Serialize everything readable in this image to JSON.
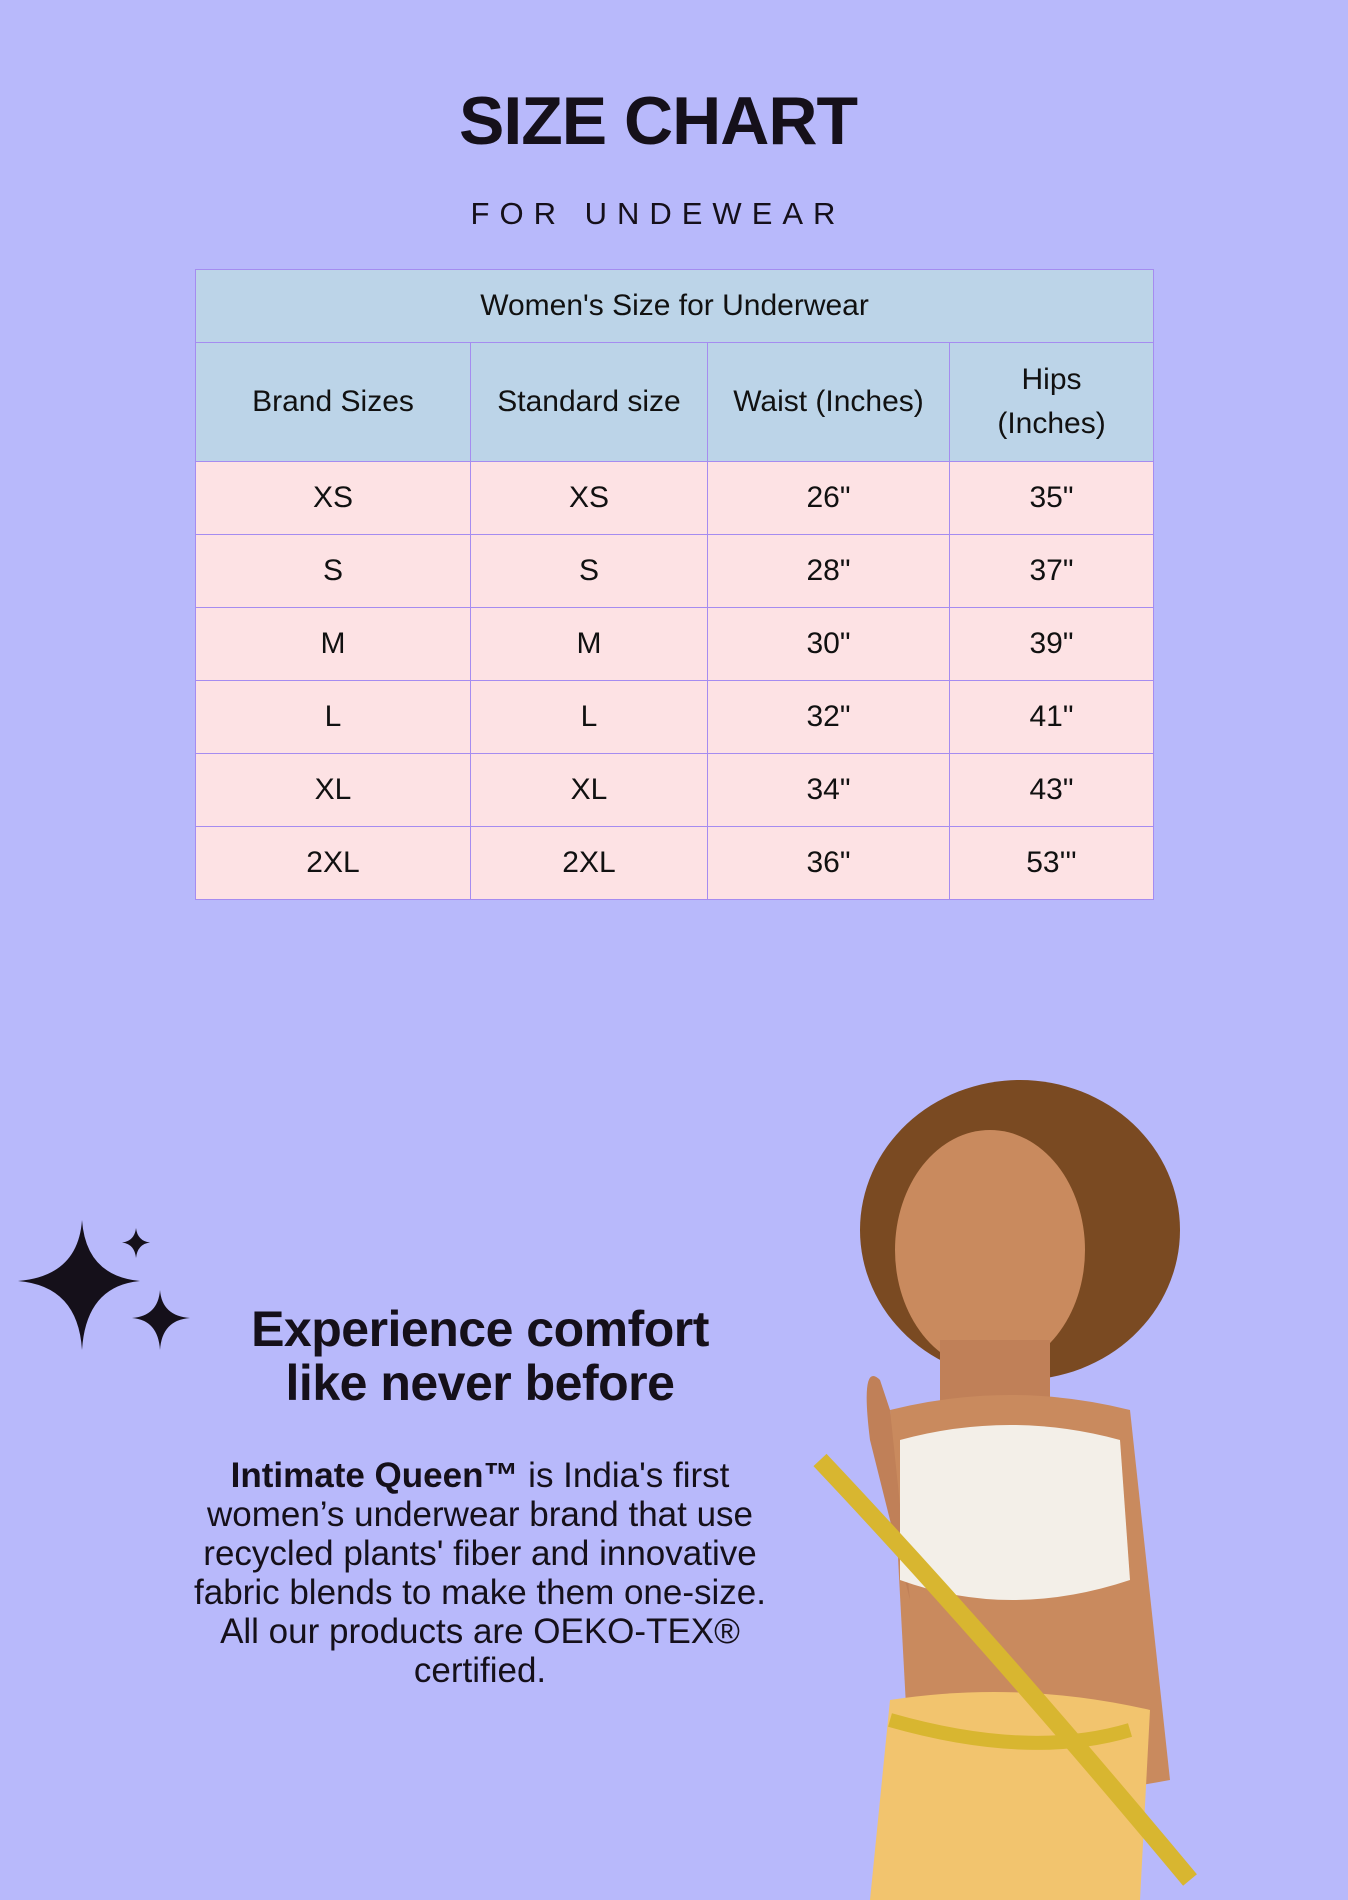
{
  "header": {
    "title": "SIZE CHART",
    "subtitle": "FOR UNDEWEAR"
  },
  "table": {
    "caption": "Women's Size for Underwear",
    "columns": [
      "Brand Sizes",
      "Standard size",
      "Waist (Inches)",
      "Hips (Inches)"
    ],
    "rows": [
      [
        "XS",
        "XS",
        "26\"",
        "35\""
      ],
      [
        "S",
        "S",
        "28\"",
        "37\""
      ],
      [
        "M",
        "M",
        "30\"",
        "39\""
      ],
      [
        "L",
        "L",
        "32\"",
        "41\""
      ],
      [
        "XL",
        "XL",
        "34\"",
        "43\""
      ],
      [
        "2XL",
        "2XL",
        "36\"",
        "53'''"
      ]
    ]
  },
  "promo": {
    "headline_line1": "Experience comfort",
    "headline_line2": "like never before",
    "brand": "Intimate Queen™",
    "body": " is India's first women’s underwear brand that use recycled plants' fiber and innovative fabric blends to make them one-size. All our products are OEKO-TEX® certified."
  },
  "icons": [
    "sparkle-icon"
  ],
  "colors": {
    "background": "#b8b9fb",
    "header_cell": "#bcd4e8",
    "body_cell": "#fde2e4",
    "border": "#a58cf0",
    "text": "#15101a"
  }
}
